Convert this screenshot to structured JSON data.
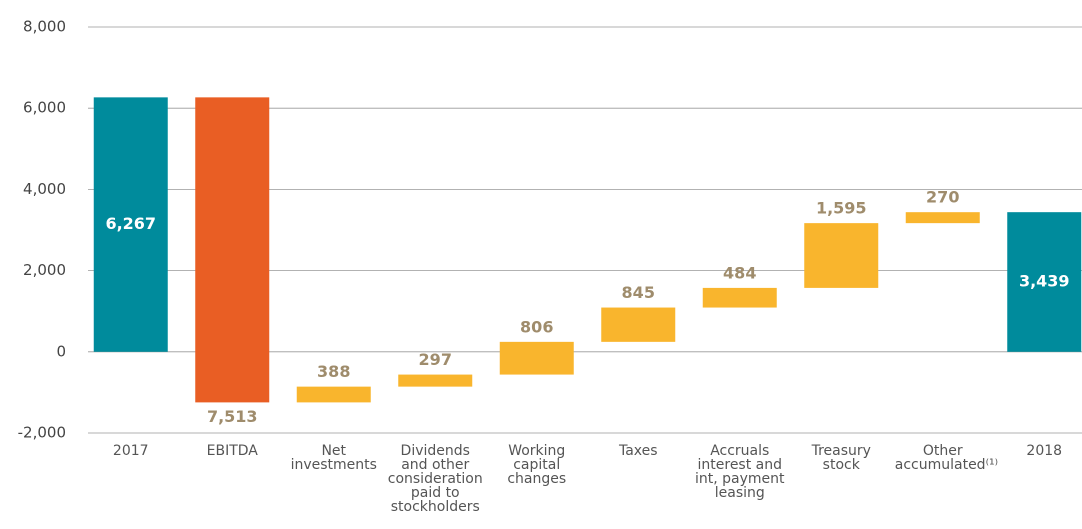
{
  "chart_data": {
    "type": "waterfall",
    "categories": [
      "2017",
      "EBITDA",
      "Net investments",
      "Dividends and other consideration paid to stockholders",
      "Working capital changes",
      "Taxes",
      "Accruals interest and int, payment leasing",
      "Treasury stock",
      "Other accumulated⁽¹⁾",
      "2018"
    ],
    "values": [
      6267,
      7513,
      388,
      297,
      806,
      845,
      484,
      1595,
      270,
      3439
    ],
    "value_labels": [
      "6,267",
      "7,513",
      "388",
      "297",
      "806",
      "845",
      "484",
      "1,595",
      "270",
      "3,439"
    ],
    "measure": [
      "total",
      "decrease",
      "increase",
      "increase",
      "increase",
      "increase",
      "increase",
      "increase",
      "increase",
      "total"
    ],
    "colors": {
      "total": "#008b9c",
      "decrease": "#e95e24",
      "increase": "#f9b52d"
    },
    "ylim": [
      -2000,
      8000
    ],
    "yticks": [
      {
        "value": -2000,
        "label": "-2,000"
      },
      0,
      {
        "value": 2000,
        "label": "2,000"
      },
      {
        "value": 4000,
        "label": "4,000"
      },
      {
        "value": 6000,
        "label": "6,000"
      },
      {
        "value": 8000,
        "label": "8,000"
      }
    ],
    "grid": true
  }
}
